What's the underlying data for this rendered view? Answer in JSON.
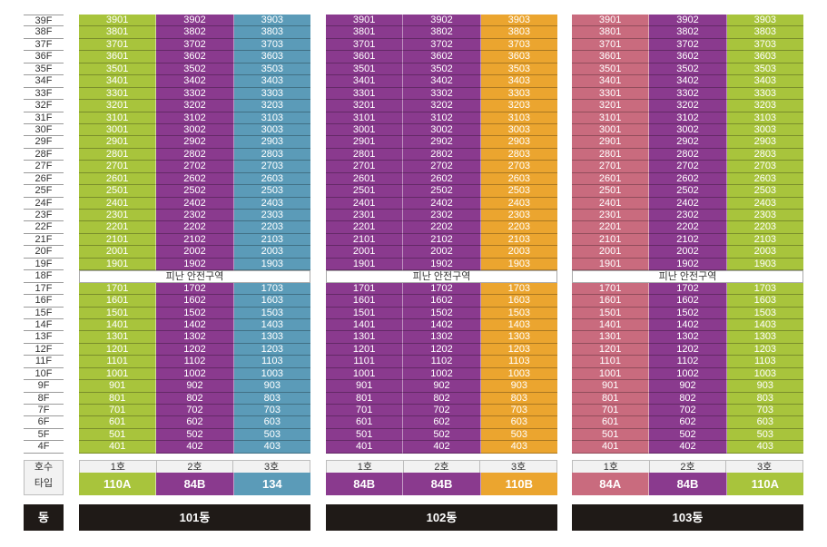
{
  "colors": {
    "green": "#a8c43c",
    "purple": "#8a3a8e",
    "blue": "#5b9bb8",
    "orange": "#eba52f",
    "pink": "#c96b7e"
  },
  "floors_upper": [
    "39F",
    "38F",
    "37F",
    "36F",
    "35F",
    "34F",
    "33F",
    "32F",
    "31F",
    "30F",
    "29F",
    "28F",
    "27F",
    "26F",
    "25F",
    "24F",
    "23F",
    "22F",
    "21F",
    "20F",
    "19F"
  ],
  "refuge_floor": "18F",
  "floors_lower": [
    "17F",
    "16F",
    "15F",
    "14F",
    "13F",
    "12F",
    "11F",
    "10F",
    "9F",
    "8F",
    "7F",
    "6F",
    "5F",
    "4F"
  ],
  "refuge_label": "피난 안전구역",
  "labels": {
    "ho": "호수",
    "type": "타입",
    "dong": "동"
  },
  "buildings": [
    {
      "name": "101동",
      "column_colors": [
        "green",
        "purple",
        "blue"
      ],
      "ho": [
        "1호",
        "2호",
        "3호"
      ],
      "types": [
        "110A",
        "84B",
        "134"
      ],
      "type_colors": [
        "green",
        "purple",
        "blue"
      ]
    },
    {
      "name": "102동",
      "column_colors": [
        "purple",
        "purple",
        "orange"
      ],
      "ho": [
        "1호",
        "2호",
        "3호"
      ],
      "types": [
        "84B",
        "84B",
        "110B"
      ],
      "type_colors": [
        "purple",
        "purple",
        "orange"
      ]
    },
    {
      "name": "103동",
      "column_colors": [
        "pink",
        "purple",
        "green"
      ],
      "ho": [
        "1호",
        "2호",
        "3호"
      ],
      "types": [
        "84A",
        "84B",
        "110A"
      ],
      "type_colors": [
        "pink",
        "purple",
        "green"
      ]
    }
  ]
}
